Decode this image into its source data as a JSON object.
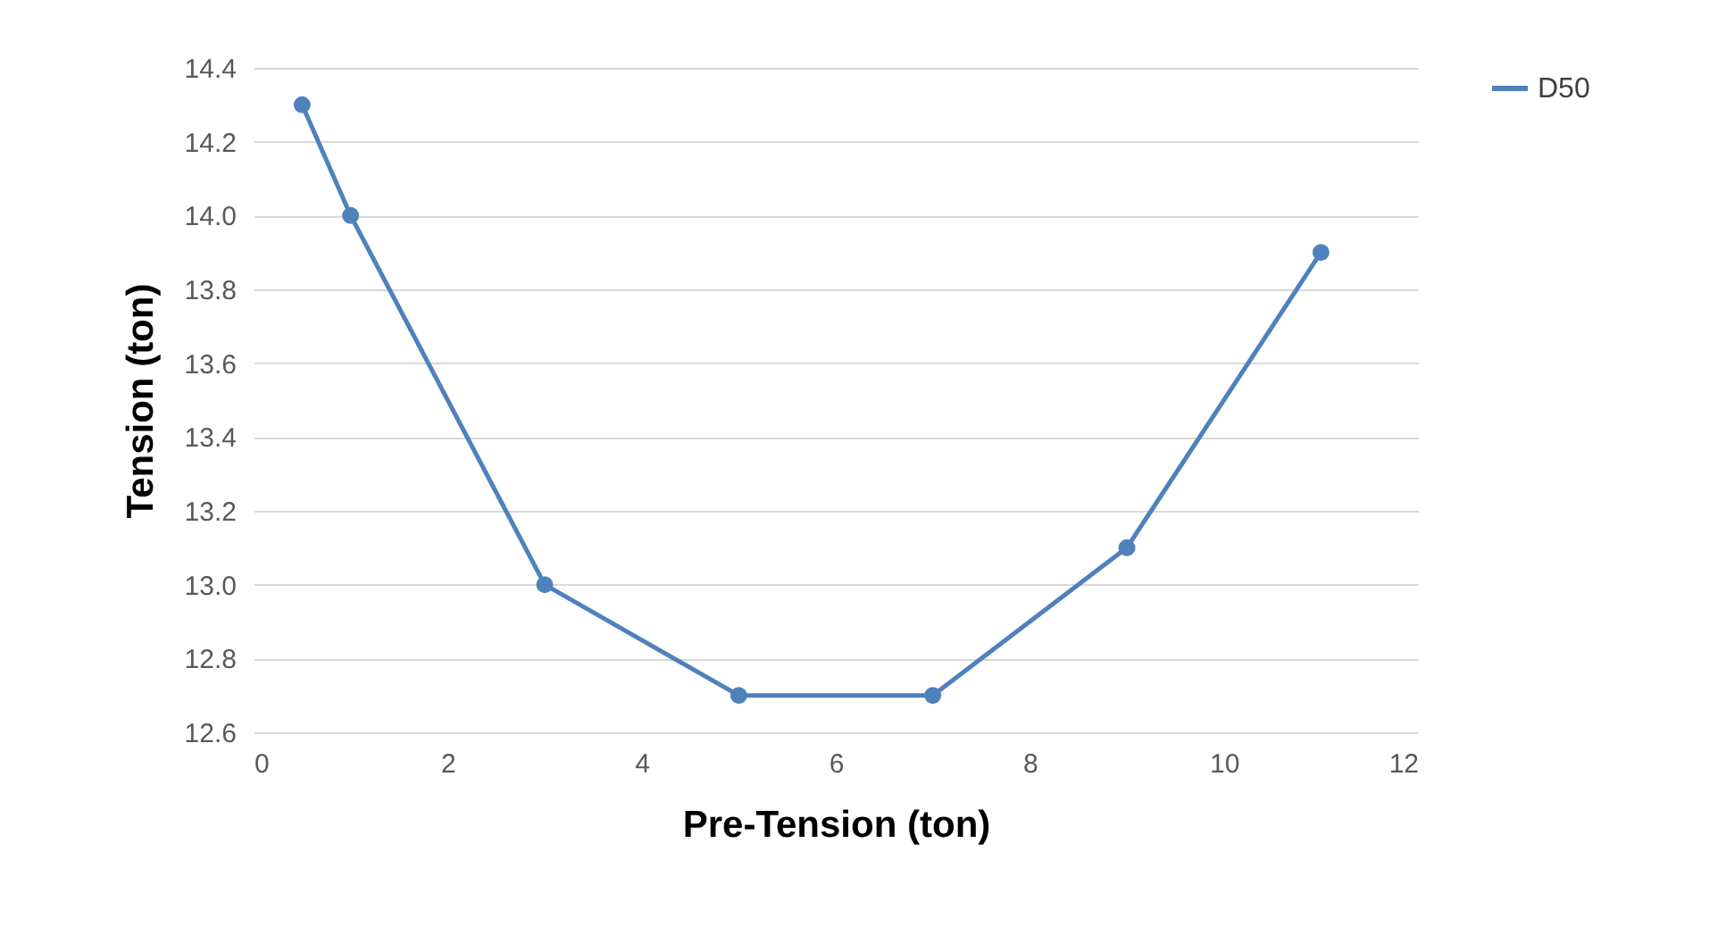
{
  "chart_data": {
    "type": "line",
    "xlabel": "Pre-Tension (ton)",
    "ylabel": "Tension (ton)",
    "x": [
      0.5,
      1,
      3,
      5,
      7,
      9,
      11
    ],
    "series": [
      {
        "name": "D50",
        "color": "#4f81bd",
        "values": [
          14.3,
          14.0,
          13.0,
          12.7,
          12.7,
          13.1,
          13.9
        ]
      }
    ],
    "xlim": [
      0,
      12
    ],
    "xticks": [
      0,
      2,
      4,
      6,
      8,
      10,
      12
    ],
    "ylim": [
      12.6,
      14.4
    ],
    "yticks": [
      {
        "value": 12.6,
        "label": "12.6"
      },
      {
        "value": 12.8,
        "label": "12.8"
      },
      {
        "value": 13,
        "label": "13.0"
      },
      {
        "value": 13.2,
        "label": "13.2"
      },
      {
        "value": 13.4,
        "label": "13.4"
      },
      {
        "value": 13.6,
        "label": "13.6"
      },
      {
        "value": 13.8,
        "label": "13.8"
      },
      {
        "value": 14,
        "label": "14.0"
      },
      {
        "value": 14.2,
        "label": "14.2"
      },
      {
        "value": 14.4,
        "label": "14.4"
      }
    ],
    "grid": "y",
    "legend": "right",
    "marker": "circle",
    "line_style": "solid"
  }
}
